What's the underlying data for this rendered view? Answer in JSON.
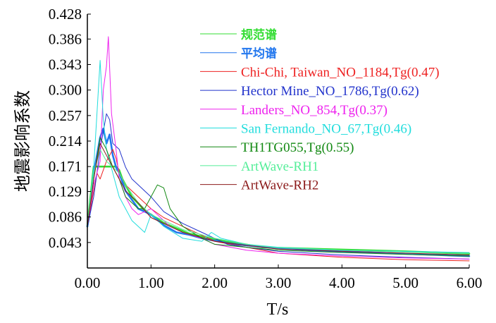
{
  "chart_data": {
    "type": "line",
    "xlabel": "T/s",
    "ylabel": "地震影响系数",
    "xlim": [
      0,
      6
    ],
    "ylim": [
      0,
      0.428
    ],
    "x_ticks": [
      "0.00",
      "1.00",
      "2.00",
      "3.00",
      "4.00",
      "5.00",
      "6.00"
    ],
    "y_ticks": [
      "0.043",
      "0.086",
      "0.129",
      "0.171",
      "0.214",
      "0.257",
      "0.300",
      "0.343",
      "0.386",
      "0.428"
    ],
    "legend_position": "top-center",
    "series": [
      {
        "name": "规范谱",
        "color": "#33dd33",
        "width": 2.6,
        "x": [
          0,
          0.1,
          0.12,
          0.2,
          0.3,
          0.4,
          0.45,
          0.5,
          0.55,
          0.7,
          0.9,
          1.2,
          1.6,
          2.0,
          2.3,
          2.75,
          3.0,
          4.0,
          5.0,
          6.0
        ],
        "y": [
          0.07,
          0.171,
          0.171,
          0.171,
          0.171,
          0.171,
          0.171,
          0.165,
          0.15,
          0.12,
          0.097,
          0.076,
          0.058,
          0.048,
          0.043,
          0.035,
          0.034,
          0.031,
          0.028,
          0.024
        ]
      },
      {
        "name": "平均谱",
        "color": "#2277ee",
        "width": 2.6,
        "x": [
          0,
          0.05,
          0.1,
          0.15,
          0.2,
          0.25,
          0.3,
          0.35,
          0.4,
          0.45,
          0.5,
          0.6,
          0.7,
          0.8,
          0.9,
          1.0,
          1.2,
          1.4,
          1.6,
          1.8,
          2.0,
          2.2,
          2.5,
          3.0,
          3.5,
          4.0,
          4.5,
          5.0,
          5.5,
          6.0
        ],
        "y": [
          0.07,
          0.1,
          0.16,
          0.19,
          0.22,
          0.235,
          0.21,
          0.225,
          0.19,
          0.17,
          0.16,
          0.13,
          0.115,
          0.1,
          0.095,
          0.09,
          0.072,
          0.06,
          0.056,
          0.05,
          0.046,
          0.042,
          0.038,
          0.033,
          0.03,
          0.028,
          0.026,
          0.024,
          0.022,
          0.02
        ]
      },
      {
        "name": "Chi-Chi, Taiwan_NO_1184,Tg(0.47)",
        "color": "#ee2222",
        "width": 1,
        "x": [
          0,
          0.05,
          0.1,
          0.15,
          0.2,
          0.3,
          0.4,
          0.45,
          0.5,
          0.6,
          0.8,
          1.0,
          1.2,
          1.5,
          1.8,
          2.0,
          2.5,
          3.0,
          4.0,
          5.0,
          6.0
        ],
        "y": [
          0.07,
          0.1,
          0.13,
          0.16,
          0.15,
          0.18,
          0.2,
          0.185,
          0.16,
          0.14,
          0.12,
          0.1,
          0.085,
          0.07,
          0.055,
          0.045,
          0.035,
          0.025,
          0.018,
          0.014,
          0.012
        ]
      },
      {
        "name": "Hector Mine_NO_1786,Tg(0.62)",
        "color": "#2233cc",
        "width": 1,
        "x": [
          0,
          0.1,
          0.2,
          0.3,
          0.35,
          0.4,
          0.5,
          0.6,
          0.7,
          0.8,
          1.0,
          1.2,
          1.5,
          1.8,
          2.0,
          2.2,
          2.5,
          3.0,
          4.0,
          5.0,
          6.0
        ],
        "y": [
          0.07,
          0.12,
          0.2,
          0.26,
          0.25,
          0.21,
          0.2,
          0.17,
          0.15,
          0.14,
          0.12,
          0.095,
          0.075,
          0.06,
          0.05,
          0.04,
          0.035,
          0.028,
          0.022,
          0.018,
          0.015
        ]
      },
      {
        "name": "Landers_NO_854,Tg(0.37)",
        "color": "#ee22ee",
        "width": 1,
        "x": [
          0,
          0.1,
          0.2,
          0.25,
          0.3,
          0.33,
          0.38,
          0.45,
          0.5,
          0.6,
          0.7,
          0.8,
          1.0,
          1.2,
          1.3,
          1.5,
          1.8,
          2.0,
          2.5,
          3.0,
          4.0,
          5.0,
          6.0
        ],
        "y": [
          0.07,
          0.14,
          0.18,
          0.3,
          0.34,
          0.39,
          0.26,
          0.2,
          0.15,
          0.12,
          0.1,
          0.09,
          0.1,
          0.08,
          0.07,
          0.06,
          0.05,
          0.04,
          0.03,
          0.025,
          0.02,
          0.017,
          0.015
        ]
      },
      {
        "name": "San Fernando_NO_67,Tg(0.46)",
        "color": "#22dddd",
        "width": 1,
        "x": [
          0,
          0.1,
          0.15,
          0.2,
          0.25,
          0.3,
          0.4,
          0.5,
          0.6,
          0.7,
          0.8,
          0.9,
          1.0,
          1.2,
          1.5,
          1.8,
          1.95,
          2.1,
          2.5,
          3.0,
          4.0,
          5.0,
          6.0
        ],
        "y": [
          0.07,
          0.17,
          0.26,
          0.35,
          0.25,
          0.2,
          0.16,
          0.12,
          0.1,
          0.08,
          0.07,
          0.06,
          0.09,
          0.07,
          0.05,
          0.045,
          0.06,
          0.05,
          0.04,
          0.035,
          0.03,
          0.028,
          0.026
        ]
      },
      {
        "name": "TH1TG055,Tg(0.55)",
        "color": "#118811",
        "width": 1,
        "x": [
          0,
          0.1,
          0.2,
          0.3,
          0.4,
          0.5,
          0.6,
          0.7,
          0.8,
          0.9,
          1.0,
          1.1,
          1.2,
          1.3,
          1.5,
          1.8,
          2.0,
          2.5,
          3.0,
          4.0,
          5.0,
          6.0
        ],
        "y": [
          0.07,
          0.15,
          0.22,
          0.2,
          0.17,
          0.15,
          0.12,
          0.11,
          0.1,
          0.1,
          0.12,
          0.14,
          0.135,
          0.1,
          0.07,
          0.05,
          0.04,
          0.035,
          0.03,
          0.026,
          0.023,
          0.02
        ]
      },
      {
        "name": "ArtWave-RH1",
        "color": "#55ee99",
        "width": 1,
        "x": [
          0,
          0.1,
          0.2,
          0.3,
          0.4,
          0.5,
          0.6,
          0.8,
          1.0,
          1.5,
          2.0,
          2.5,
          3.0,
          4.0,
          5.0,
          6.0
        ],
        "y": [
          0.07,
          0.16,
          0.2,
          0.18,
          0.17,
          0.16,
          0.14,
          0.11,
          0.09,
          0.065,
          0.05,
          0.04,
          0.034,
          0.03,
          0.027,
          0.024
        ]
      },
      {
        "name": "ArtWave-RH2",
        "color": "#8b1a1a",
        "width": 1,
        "x": [
          0,
          0.1,
          0.2,
          0.3,
          0.4,
          0.5,
          0.6,
          0.8,
          1.0,
          1.5,
          2.0,
          2.5,
          3.0,
          4.0,
          5.0,
          6.0
        ],
        "y": [
          0.07,
          0.15,
          0.21,
          0.19,
          0.17,
          0.15,
          0.13,
          0.11,
          0.085,
          0.06,
          0.045,
          0.038,
          0.032,
          0.028,
          0.025,
          0.022
        ]
      }
    ]
  }
}
